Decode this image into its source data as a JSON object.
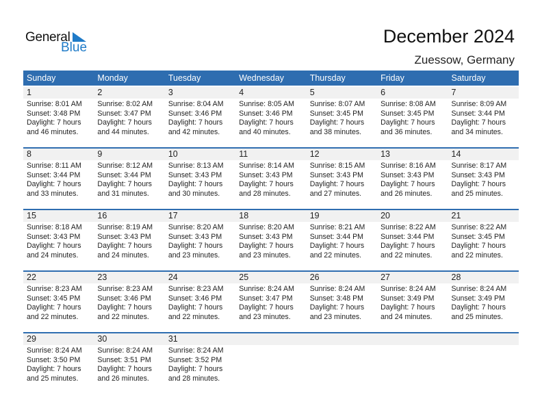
{
  "logo": {
    "line1": "General",
    "line2": "Blue"
  },
  "header": {
    "title": "December 2024",
    "location": "Zuessow, Germany"
  },
  "colors": {
    "accent": "#2e6db0",
    "logo_blue": "#1f7bc8"
  },
  "weekdays": [
    "Sunday",
    "Monday",
    "Tuesday",
    "Wednesday",
    "Thursday",
    "Friday",
    "Saturday"
  ],
  "weeks": [
    [
      {
        "day": "1",
        "sunrise": "Sunrise: 8:01 AM",
        "sunset": "Sunset: 3:48 PM",
        "daylight": "Daylight: 7 hours",
        "minutes": "and 46 minutes."
      },
      {
        "day": "2",
        "sunrise": "Sunrise: 8:02 AM",
        "sunset": "Sunset: 3:47 PM",
        "daylight": "Daylight: 7 hours",
        "minutes": "and 44 minutes."
      },
      {
        "day": "3",
        "sunrise": "Sunrise: 8:04 AM",
        "sunset": "Sunset: 3:46 PM",
        "daylight": "Daylight: 7 hours",
        "minutes": "and 42 minutes."
      },
      {
        "day": "4",
        "sunrise": "Sunrise: 8:05 AM",
        "sunset": "Sunset: 3:46 PM",
        "daylight": "Daylight: 7 hours",
        "minutes": "and 40 minutes."
      },
      {
        "day": "5",
        "sunrise": "Sunrise: 8:07 AM",
        "sunset": "Sunset: 3:45 PM",
        "daylight": "Daylight: 7 hours",
        "minutes": "and 38 minutes."
      },
      {
        "day": "6",
        "sunrise": "Sunrise: 8:08 AM",
        "sunset": "Sunset: 3:45 PM",
        "daylight": "Daylight: 7 hours",
        "minutes": "and 36 minutes."
      },
      {
        "day": "7",
        "sunrise": "Sunrise: 8:09 AM",
        "sunset": "Sunset: 3:44 PM",
        "daylight": "Daylight: 7 hours",
        "minutes": "and 34 minutes."
      }
    ],
    [
      {
        "day": "8",
        "sunrise": "Sunrise: 8:11 AM",
        "sunset": "Sunset: 3:44 PM",
        "daylight": "Daylight: 7 hours",
        "minutes": "and 33 minutes."
      },
      {
        "day": "9",
        "sunrise": "Sunrise: 8:12 AM",
        "sunset": "Sunset: 3:44 PM",
        "daylight": "Daylight: 7 hours",
        "minutes": "and 31 minutes."
      },
      {
        "day": "10",
        "sunrise": "Sunrise: 8:13 AM",
        "sunset": "Sunset: 3:43 PM",
        "daylight": "Daylight: 7 hours",
        "minutes": "and 30 minutes."
      },
      {
        "day": "11",
        "sunrise": "Sunrise: 8:14 AM",
        "sunset": "Sunset: 3:43 PM",
        "daylight": "Daylight: 7 hours",
        "minutes": "and 28 minutes."
      },
      {
        "day": "12",
        "sunrise": "Sunrise: 8:15 AM",
        "sunset": "Sunset: 3:43 PM",
        "daylight": "Daylight: 7 hours",
        "minutes": "and 27 minutes."
      },
      {
        "day": "13",
        "sunrise": "Sunrise: 8:16 AM",
        "sunset": "Sunset: 3:43 PM",
        "daylight": "Daylight: 7 hours",
        "minutes": "and 26 minutes."
      },
      {
        "day": "14",
        "sunrise": "Sunrise: 8:17 AM",
        "sunset": "Sunset: 3:43 PM",
        "daylight": "Daylight: 7 hours",
        "minutes": "and 25 minutes."
      }
    ],
    [
      {
        "day": "15",
        "sunrise": "Sunrise: 8:18 AM",
        "sunset": "Sunset: 3:43 PM",
        "daylight": "Daylight: 7 hours",
        "minutes": "and 24 minutes."
      },
      {
        "day": "16",
        "sunrise": "Sunrise: 8:19 AM",
        "sunset": "Sunset: 3:43 PM",
        "daylight": "Daylight: 7 hours",
        "minutes": "and 24 minutes."
      },
      {
        "day": "17",
        "sunrise": "Sunrise: 8:20 AM",
        "sunset": "Sunset: 3:43 PM",
        "daylight": "Daylight: 7 hours",
        "minutes": "and 23 minutes."
      },
      {
        "day": "18",
        "sunrise": "Sunrise: 8:20 AM",
        "sunset": "Sunset: 3:43 PM",
        "daylight": "Daylight: 7 hours",
        "minutes": "and 23 minutes."
      },
      {
        "day": "19",
        "sunrise": "Sunrise: 8:21 AM",
        "sunset": "Sunset: 3:44 PM",
        "daylight": "Daylight: 7 hours",
        "minutes": "and 22 minutes."
      },
      {
        "day": "20",
        "sunrise": "Sunrise: 8:22 AM",
        "sunset": "Sunset: 3:44 PM",
        "daylight": "Daylight: 7 hours",
        "minutes": "and 22 minutes."
      },
      {
        "day": "21",
        "sunrise": "Sunrise: 8:22 AM",
        "sunset": "Sunset: 3:45 PM",
        "daylight": "Daylight: 7 hours",
        "minutes": "and 22 minutes."
      }
    ],
    [
      {
        "day": "22",
        "sunrise": "Sunrise: 8:23 AM",
        "sunset": "Sunset: 3:45 PM",
        "daylight": "Daylight: 7 hours",
        "minutes": "and 22 minutes."
      },
      {
        "day": "23",
        "sunrise": "Sunrise: 8:23 AM",
        "sunset": "Sunset: 3:46 PM",
        "daylight": "Daylight: 7 hours",
        "minutes": "and 22 minutes."
      },
      {
        "day": "24",
        "sunrise": "Sunrise: 8:23 AM",
        "sunset": "Sunset: 3:46 PM",
        "daylight": "Daylight: 7 hours",
        "minutes": "and 22 minutes."
      },
      {
        "day": "25",
        "sunrise": "Sunrise: 8:24 AM",
        "sunset": "Sunset: 3:47 PM",
        "daylight": "Daylight: 7 hours",
        "minutes": "and 23 minutes."
      },
      {
        "day": "26",
        "sunrise": "Sunrise: 8:24 AM",
        "sunset": "Sunset: 3:48 PM",
        "daylight": "Daylight: 7 hours",
        "minutes": "and 23 minutes."
      },
      {
        "day": "27",
        "sunrise": "Sunrise: 8:24 AM",
        "sunset": "Sunset: 3:49 PM",
        "daylight": "Daylight: 7 hours",
        "minutes": "and 24 minutes."
      },
      {
        "day": "28",
        "sunrise": "Sunrise: 8:24 AM",
        "sunset": "Sunset: 3:49 PM",
        "daylight": "Daylight: 7 hours",
        "minutes": "and 25 minutes."
      }
    ],
    [
      {
        "day": "29",
        "sunrise": "Sunrise: 8:24 AM",
        "sunset": "Sunset: 3:50 PM",
        "daylight": "Daylight: 7 hours",
        "minutes": "and 25 minutes."
      },
      {
        "day": "30",
        "sunrise": "Sunrise: 8:24 AM",
        "sunset": "Sunset: 3:51 PM",
        "daylight": "Daylight: 7 hours",
        "minutes": "and 26 minutes."
      },
      {
        "day": "31",
        "sunrise": "Sunrise: 8:24 AM",
        "sunset": "Sunset: 3:52 PM",
        "daylight": "Daylight: 7 hours",
        "minutes": "and 28 minutes."
      },
      null,
      null,
      null,
      null
    ]
  ]
}
